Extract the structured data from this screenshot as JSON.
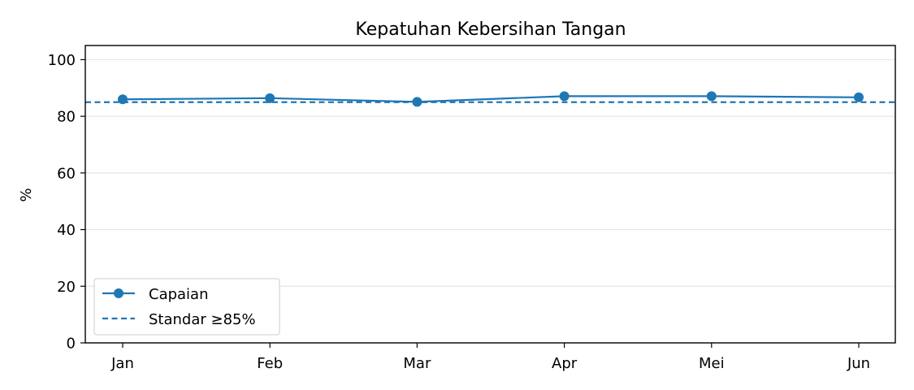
{
  "chart_data": {
    "type": "line",
    "title": "Kepatuhan Kebersihan Tangan",
    "xlabel": "",
    "ylabel": "%",
    "categories": [
      "Jan",
      "Feb",
      "Mar",
      "Apr",
      "Mei",
      "Jun"
    ],
    "series": [
      {
        "name": "Capaian",
        "values": [
          86.0,
          86.4,
          85.1,
          87.1,
          87.1,
          86.7
        ],
        "color": "#1f77b4",
        "marker": "circle",
        "line_style": "solid"
      }
    ],
    "reference_line": {
      "name": "Standar ≥85%",
      "value": 85,
      "color": "#1f77b4",
      "line_style": "dashed"
    },
    "ylim": [
      0,
      105
    ],
    "yticks": [
      0,
      20,
      40,
      60,
      80,
      100
    ],
    "grid": "horizontal",
    "legend_position": "lower-left"
  }
}
